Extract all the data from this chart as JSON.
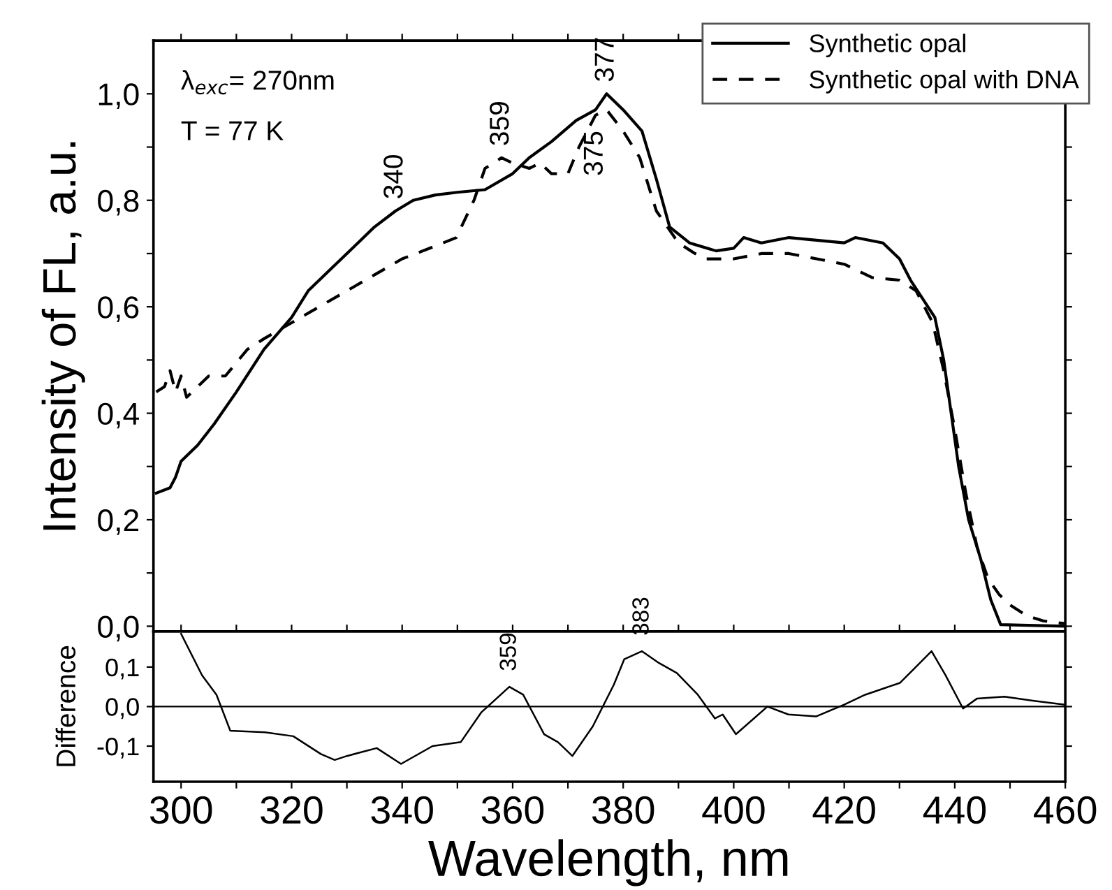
{
  "chart_data": [
    {
      "type": "line",
      "ylabel": "Intensity of FL, a.u.",
      "xlim": [
        295,
        460
      ],
      "ylim": [
        -0.01,
        1.1
      ],
      "xticks": [
        {
          "value": 300,
          "label": null
        },
        {
          "value": 310,
          "label": null
        },
        {
          "value": 320,
          "label": null
        },
        {
          "value": 330,
          "label": null
        },
        {
          "value": 340,
          "label": null
        },
        {
          "value": 350,
          "label": null
        },
        {
          "value": 360,
          "label": null
        },
        {
          "value": 370,
          "label": null
        },
        {
          "value": 380,
          "label": null
        },
        {
          "value": 390,
          "label": null
        },
        {
          "value": 400,
          "label": null
        },
        {
          "value": 410,
          "label": null
        },
        {
          "value": 420,
          "label": null
        },
        {
          "value": 430,
          "label": null
        },
        {
          "value": 440,
          "label": null
        },
        {
          "value": 450,
          "label": null
        },
        {
          "value": 460,
          "label": null
        }
      ],
      "yticks": [
        {
          "value": 0.0,
          "label": "0,0"
        },
        {
          "value": 0.1,
          "label": null
        },
        {
          "value": 0.2,
          "label": "0,2"
        },
        {
          "value": 0.3,
          "label": null
        },
        {
          "value": 0.4,
          "label": "0,4"
        },
        {
          "value": 0.5,
          "label": null
        },
        {
          "value": 0.6,
          "label": "0,6"
        },
        {
          "value": 0.7,
          "label": null
        },
        {
          "value": 0.8,
          "label": "0,8"
        },
        {
          "value": 0.9,
          "label": null
        },
        {
          "value": 1.0,
          "label": "1,0"
        }
      ],
      "tick_labels": "y",
      "grid": false,
      "legend": "top right",
      "series": [
        {
          "name": "Synthetic opal",
          "color": "#000000",
          "line_style": "solid",
          "x": [
            295.5,
            298,
            299,
            300,
            303,
            306,
            310,
            315,
            320,
            323,
            327,
            332,
            335,
            338.8,
            342,
            346,
            350,
            355,
            360,
            363,
            367,
            371.5,
            375,
            377,
            380,
            383.4,
            386,
            388.4,
            392,
            396.8,
            400,
            401.8,
            405,
            410,
            415,
            420,
            422,
            427,
            430,
            432,
            436.4,
            438,
            440.7,
            442.5,
            444.7,
            446.5,
            448.3,
            452,
            456,
            460
          ],
          "values": [
            0.25,
            0.26,
            0.28,
            0.31,
            0.34,
            0.38,
            0.44,
            0.52,
            0.58,
            0.63,
            0.67,
            0.72,
            0.75,
            0.78,
            0.8,
            0.81,
            0.815,
            0.82,
            0.85,
            0.88,
            0.91,
            0.95,
            0.97,
            1.0,
            0.97,
            0.93,
            0.84,
            0.75,
            0.72,
            0.705,
            0.71,
            0.73,
            0.72,
            0.73,
            0.725,
            0.72,
            0.73,
            0.72,
            0.69,
            0.65,
            0.58,
            0.5,
            0.3,
            0.2,
            0.126,
            0.05,
            0.003,
            0.002,
            0.001,
            0.0
          ]
        },
        {
          "name": "Synthetic opal with DNA",
          "color": "#000000",
          "line_style": "dashed",
          "x": [
            295.5,
            297,
            298,
            299,
            300,
            301,
            303,
            305,
            308,
            312,
            315,
            320,
            325,
            330,
            335,
            340,
            345,
            349.8,
            353,
            355,
            358,
            360,
            363,
            365,
            367,
            370,
            372,
            375,
            377,
            380,
            383,
            386,
            390,
            393,
            395,
            398,
            400,
            405,
            410,
            415,
            420,
            425,
            430,
            433,
            436,
            438,
            440,
            442,
            444,
            446,
            448,
            450,
            453,
            456,
            460
          ],
          "values": [
            0.44,
            0.45,
            0.48,
            0.44,
            0.47,
            0.43,
            0.45,
            0.47,
            0.47,
            0.52,
            0.54,
            0.57,
            0.6,
            0.63,
            0.66,
            0.69,
            0.71,
            0.73,
            0.8,
            0.86,
            0.88,
            0.87,
            0.86,
            0.87,
            0.85,
            0.85,
            0.9,
            0.96,
            0.97,
            0.93,
            0.88,
            0.78,
            0.72,
            0.7,
            0.69,
            0.69,
            0.69,
            0.7,
            0.7,
            0.69,
            0.68,
            0.655,
            0.65,
            0.63,
            0.57,
            0.48,
            0.37,
            0.25,
            0.15,
            0.09,
            0.06,
            0.04,
            0.02,
            0.01,
            0.005
          ]
        }
      ],
      "annotations": [
        "λ$_{exc}$= 270nm",
        "T = 77 K",
        {
          "text": "340",
          "x": 338.8,
          "y": 0.78
        },
        {
          "text": "359",
          "x": 358,
          "y": 0.88
        },
        {
          "text": "377",
          "x": 377,
          "y": 1.0
        },
        {
          "text": "375",
          "x": 375,
          "y": 0.96
        }
      ]
    },
    {
      "type": "line",
      "xlabel": "Wavelength, nm",
      "ylabel": "Difference",
      "xlim": [
        295,
        460
      ],
      "ylim": [
        -0.19,
        0.19
      ],
      "xticks": [
        300,
        {
          "value": 310,
          "label": null
        },
        320,
        {
          "value": 330,
          "label": null
        },
        340,
        {
          "value": 350,
          "label": null
        },
        360,
        {
          "value": 370,
          "label": null
        },
        380,
        {
          "value": 390,
          "label": null
        },
        400,
        {
          "value": 410,
          "label": null
        },
        420,
        {
          "value": 430,
          "label": null
        },
        440,
        {
          "value": 450,
          "label": null
        },
        460
      ],
      "yticks": [
        {
          "value": -0.1,
          "label": "-0,1"
        },
        {
          "value": 0.0,
          "label": "0,0"
        },
        {
          "value": 0.1,
          "label": "0,1"
        }
      ],
      "grid": false,
      "ref_lines": [
        {
          "axis": "y",
          "value": 0.0,
          "label": null,
          "color": "#000000"
        }
      ],
      "series": [
        {
          "color": "#000000",
          "line_style": "solid",
          "x": [
            300,
            303.8,
            306.4,
            308.9,
            315.2,
            320.3,
            325.3,
            327.8,
            330,
            335.4,
            339.8,
            345.5,
            350.6,
            354.3,
            359.4,
            361.9,
            365.7,
            368.2,
            370.8,
            374.5,
            378.3,
            380.2,
            383.4,
            386.5,
            389.7,
            393.5,
            396.6,
            398,
            400.4,
            406.1,
            409.9,
            414.9,
            420,
            423.8,
            430.1,
            432.6,
            435.8,
            438.3,
            441.5,
            444,
            449,
            454.1,
            459.8
          ],
          "values": [
            0.184,
            0.079,
            0.03,
            -0.061,
            -0.065,
            -0.075,
            -0.12,
            -0.135,
            -0.125,
            -0.105,
            -0.145,
            -0.1,
            -0.09,
            -0.015,
            0.05,
            0.03,
            -0.07,
            -0.09,
            -0.125,
            -0.05,
            0.055,
            0.12,
            0.14,
            0.11,
            0.085,
            0.03,
            -0.03,
            -0.02,
            -0.07,
            0.0,
            -0.02,
            -0.025,
            0.005,
            0.03,
            0.06,
            0.095,
            0.14,
            0.08,
            -0.005,
            0.02,
            0.025,
            0.015,
            0.005
          ]
        }
      ],
      "annotations": [
        {
          "text": "359",
          "x": 359.5,
          "y": 0.06
        },
        {
          "text": "383",
          "x": 383.5,
          "y": 0.15
        }
      ]
    }
  ]
}
